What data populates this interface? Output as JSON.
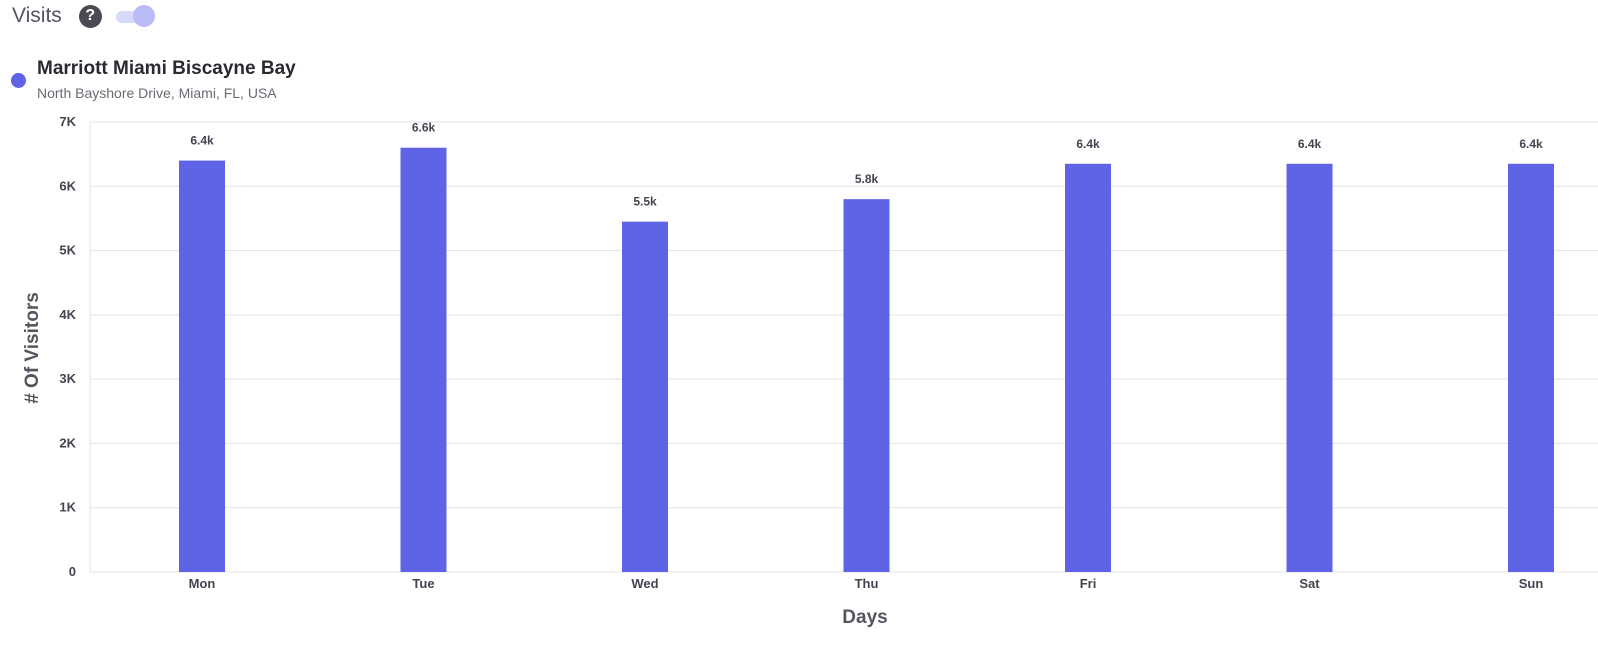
{
  "header": {
    "title": "Visits",
    "help_icon": "question-circle-icon",
    "help_glyph": "?",
    "toggle_on": true
  },
  "legend": {
    "name": "Marriott Miami Biscayne Bay",
    "address": "North Bayshore Drive, Miami, FL, USA",
    "color": "#5f63e6"
  },
  "colors": {
    "bar": "#5f63e6",
    "grid": "#e3e3e3",
    "toggle_track": "#d7d9fb",
    "toggle_thumb": "#b9bcf6"
  },
  "chart_data": {
    "type": "bar",
    "categories": [
      "Mon",
      "Tue",
      "Wed",
      "Thu",
      "Fri",
      "Sat",
      "Sun"
    ],
    "values": [
      6400,
      6600,
      5450,
      5800,
      6350,
      6350,
      6350
    ],
    "data_labels": [
      "6.4k",
      "6.6k",
      "5.5k",
      "5.8k",
      "6.4k",
      "6.4k",
      "6.4k"
    ],
    "xlabel": "Days",
    "ylabel": "# Of Visitors",
    "ylim": [
      0,
      7000
    ],
    "yticks": [
      0,
      1000,
      2000,
      3000,
      4000,
      5000,
      6000,
      7000
    ],
    "ytick_labels": [
      "0",
      "1K",
      "2K",
      "3K",
      "4K",
      "5K",
      "6K",
      "7K"
    ],
    "grid": true
  }
}
